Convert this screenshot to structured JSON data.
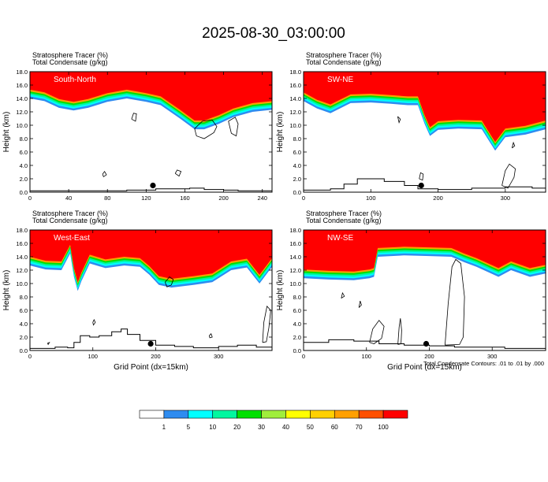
{
  "page": {
    "title": "2025-08-30_03:00:00",
    "footnote": "Total Condensate Contours: .01 to .01 by .000"
  },
  "colors": {
    "frame": "#000000",
    "contour": "#000000",
    "marker": "#000000"
  },
  "chart_data": {
    "type": "heatmap",
    "title": "2025-08-30_03:00:00",
    "variables": [
      "Stratosphere Tracer   (%)",
      "Total Condensate   (g/kg)"
    ],
    "xlabel": "Grid Point (dx=15km)",
    "ylabel": "Height (km)",
    "ylim": [
      0,
      18
    ],
    "yticks": [
      "0.0",
      "2.0",
      "4.0",
      "6.0",
      "8.0",
      "10.0",
      "12.0",
      "14.0",
      "16.0",
      "18.0"
    ],
    "colorbar": {
      "levels": [
        "1",
        "5",
        "10",
        "20",
        "30",
        "40",
        "50",
        "60",
        "70",
        "100"
      ],
      "colors": [
        "#ffffff",
        "#2e8cf0",
        "#00ffff",
        "#00f7a0",
        "#00e000",
        "#a0ee3c",
        "#ffff00",
        "#ffd000",
        "#ffa000",
        "#ff5000",
        "#ff0000"
      ]
    },
    "panels": [
      {
        "label": "South-North",
        "xlim": [
          0,
          250
        ],
        "xticks": [
          0,
          40,
          80,
          120,
          160,
          200,
          240
        ],
        "xlabels": [
          "0",
          "40",
          "80",
          "120",
          "160",
          "200",
          "240"
        ],
        "show_xlabel": false,
        "tracer_base_km": [
          [
            0,
            14.0
          ],
          [
            15,
            13.6
          ],
          [
            30,
            12.6
          ],
          [
            45,
            12.2
          ],
          [
            60,
            12.6
          ],
          [
            80,
            13.5
          ],
          [
            100,
            14.0
          ],
          [
            120,
            13.5
          ],
          [
            135,
            13.0
          ],
          [
            155,
            11.0
          ],
          [
            170,
            9.4
          ],
          [
            180,
            9.4
          ],
          [
            195,
            10.2
          ],
          [
            210,
            11.2
          ],
          [
            230,
            12.0
          ],
          [
            250,
            12.3
          ]
        ],
        "contours": [
          [
            [
              170,
              9.5
            ],
            [
              178,
              10.6
            ],
            [
              188,
              10.8
            ],
            [
              193,
              9.8
            ],
            [
              190,
              8.9
            ],
            [
              180,
              8.0
            ],
            [
              172,
              8.4
            ],
            [
              170,
              9.5
            ]
          ],
          [
            [
              105,
              10.9
            ],
            [
              107,
              11.8
            ],
            [
              110,
              11.7
            ],
            [
              109,
              10.6
            ],
            [
              105,
              10.9
            ]
          ],
          [
            [
              205,
              10.6
            ],
            [
              208,
              8.8
            ],
            [
              213,
              8.4
            ],
            [
              215,
              10.2
            ],
            [
              212,
              11.2
            ],
            [
              205,
              10.6
            ]
          ],
          [
            [
              150,
              2.8
            ],
            [
              152,
              3.3
            ],
            [
              156,
              3.1
            ],
            [
              154,
              2.4
            ],
            [
              150,
              2.8
            ]
          ],
          [
            [
              75,
              2.7
            ],
            [
              77,
              3.1
            ],
            [
              79,
              2.6
            ],
            [
              76,
              2.3
            ],
            [
              75,
              2.7
            ]
          ]
        ],
        "terrain": [
          [
            0,
            0.2
          ],
          [
            60,
            0.2
          ],
          [
            100,
            0.3
          ],
          [
            130,
            0.5
          ],
          [
            150,
            0.5
          ],
          [
            165,
            0.6
          ],
          [
            180,
            0.4
          ],
          [
            200,
            0.3
          ],
          [
            215,
            0.2
          ],
          [
            250,
            0.1
          ]
        ],
        "marker": [
          127,
          1.0
        ]
      },
      {
        "label": "SW-NE",
        "xlim": [
          0,
          360
        ],
        "xticks": [
          0,
          100,
          200,
          300
        ],
        "xlabels": [
          "0",
          "100",
          "200",
          "300"
        ],
        "show_xlabel": false,
        "tracer_base_km": [
          [
            0,
            13.6
          ],
          [
            20,
            12.5
          ],
          [
            40,
            11.8
          ],
          [
            70,
            13.3
          ],
          [
            100,
            13.4
          ],
          [
            130,
            13.2
          ],
          [
            155,
            13.0
          ],
          [
            170,
            13.0
          ],
          [
            180,
            10.2
          ],
          [
            188,
            8.4
          ],
          [
            200,
            9.3
          ],
          [
            230,
            9.5
          ],
          [
            265,
            9.4
          ],
          [
            275,
            7.8
          ],
          [
            285,
            6.2
          ],
          [
            300,
            8.2
          ],
          [
            330,
            8.6
          ],
          [
            360,
            9.4
          ]
        ],
        "contours": [
          [
            [
              295,
              1.0
            ],
            [
              300,
              3.2
            ],
            [
              306,
              4.2
            ],
            [
              315,
              3.5
            ],
            [
              313,
              2.2
            ],
            [
              304,
              0.6
            ],
            [
              295,
              1.0
            ]
          ],
          [
            [
              172,
              2.0
            ],
            [
              174,
              2.9
            ],
            [
              178,
              2.7
            ],
            [
              177,
              1.8
            ],
            [
              172,
              2.0
            ]
          ],
          [
            [
              140,
              11.3
            ],
            [
              142,
              10.4
            ],
            [
              144,
              10.9
            ],
            [
              140,
              11.3
            ]
          ],
          [
            [
              310,
              6.6
            ],
            [
              312,
              7.4
            ],
            [
              314,
              6.9
            ],
            [
              310,
              6.6
            ]
          ]
        ],
        "terrain": [
          [
            0,
            0.3
          ],
          [
            40,
            0.5
          ],
          [
            60,
            1.2
          ],
          [
            80,
            2.0
          ],
          [
            120,
            1.6
          ],
          [
            150,
            1.0
          ],
          [
            170,
            0.5
          ],
          [
            200,
            0.4
          ],
          [
            250,
            0.6
          ],
          [
            300,
            0.8
          ],
          [
            340,
            0.6
          ],
          [
            360,
            0.4
          ]
        ],
        "marker": [
          175,
          1.0
        ]
      },
      {
        "label": "West-East",
        "xlim": [
          0,
          385
        ],
        "xticks": [
          0,
          100,
          200,
          300
        ],
        "xlabels": [
          "0",
          "100",
          "200",
          "300"
        ],
        "show_xlabel": true,
        "tracer_base_km": [
          [
            0,
            12.7
          ],
          [
            25,
            12.1
          ],
          [
            50,
            12.0
          ],
          [
            64,
            14.5
          ],
          [
            70,
            11.0
          ],
          [
            76,
            8.9
          ],
          [
            82,
            10.4
          ],
          [
            95,
            13.0
          ],
          [
            120,
            12.3
          ],
          [
            150,
            12.7
          ],
          [
            175,
            12.5
          ],
          [
            190,
            11.3
          ],
          [
            205,
            9.8
          ],
          [
            225,
            9.4
          ],
          [
            260,
            9.8
          ],
          [
            290,
            10.2
          ],
          [
            320,
            12.0
          ],
          [
            345,
            12.4
          ],
          [
            365,
            10.0
          ],
          [
            385,
            12.5
          ]
        ],
        "contours": [
          [
            [
              215,
              10.2
            ],
            [
              222,
              11.0
            ],
            [
              228,
              10.6
            ],
            [
              225,
              9.8
            ],
            [
              218,
              9.5
            ],
            [
              215,
              10.2
            ]
          ],
          [
            [
              370,
              1.2
            ],
            [
              372,
              4.2
            ],
            [
              377,
              6.6
            ],
            [
              383,
              6.0
            ],
            [
              380,
              3.4
            ],
            [
              376,
              1.3
            ],
            [
              370,
              1.2
            ]
          ],
          [
            [
              28,
              1.1
            ],
            [
              31,
              1.2
            ],
            [
              29,
              0.9
            ],
            [
              28,
              1.1
            ]
          ],
          [
            [
              100,
              4.2
            ],
            [
              102,
              4.6
            ],
            [
              104,
              4.2
            ],
            [
              101,
              3.8
            ],
            [
              100,
              4.2
            ]
          ],
          [
            [
              285,
              2.2
            ],
            [
              288,
              2.5
            ],
            [
              290,
              2.0
            ],
            [
              286,
              1.9
            ],
            [
              285,
              2.2
            ]
          ]
        ],
        "terrain": [
          [
            0,
            0.3
          ],
          [
            40,
            0.5
          ],
          [
            60,
            0.4
          ],
          [
            70,
            1.2
          ],
          [
            80,
            2.2
          ],
          [
            95,
            2.0
          ],
          [
            110,
            2.2
          ],
          [
            130,
            2.8
          ],
          [
            145,
            3.2
          ],
          [
            155,
            2.4
          ],
          [
            175,
            1.5
          ],
          [
            200,
            0.8
          ],
          [
            230,
            0.6
          ],
          [
            260,
            0.4
          ],
          [
            300,
            0.6
          ],
          [
            330,
            0.8
          ],
          [
            360,
            0.5
          ],
          [
            385,
            0.3
          ]
        ],
        "marker": [
          192,
          1.0
        ]
      },
      {
        "label": "NW-SE",
        "xlim": [
          0,
          385
        ],
        "xticks": [
          0,
          100,
          200,
          300
        ],
        "xlabels": [
          "0",
          "100",
          "200",
          "300"
        ],
        "show_xlabel": true,
        "tracer_base_km": [
          [
            0,
            10.8
          ],
          [
            40,
            10.6
          ],
          [
            80,
            10.5
          ],
          [
            105,
            10.8
          ],
          [
            112,
            11.0
          ],
          [
            118,
            14.0
          ],
          [
            160,
            14.2
          ],
          [
            200,
            14.1
          ],
          [
            235,
            14.0
          ],
          [
            255,
            13.2
          ],
          [
            275,
            12.5
          ],
          [
            310,
            11.0
          ],
          [
            330,
            12.0
          ],
          [
            360,
            11.0
          ],
          [
            385,
            11.5
          ]
        ],
        "contours": [
          [
            [
              225,
              0.8
            ],
            [
              230,
              7.0
            ],
            [
              236,
              12.5
            ],
            [
              242,
              13.6
            ],
            [
              250,
              13.0
            ],
            [
              256,
              8.0
            ],
            [
              254,
              2.0
            ],
            [
              248,
              0.9
            ],
            [
              225,
              0.8
            ]
          ],
          [
            [
              150,
              0.9
            ],
            [
              152,
              3.5
            ],
            [
              154,
              4.8
            ],
            [
              156,
              3.0
            ],
            [
              155,
              1.0
            ],
            [
              150,
              0.9
            ]
          ],
          [
            [
              105,
              1.2
            ],
            [
              110,
              3.2
            ],
            [
              120,
              4.5
            ],
            [
              128,
              3.6
            ],
            [
              124,
              1.8
            ],
            [
              112,
              1.0
            ],
            [
              105,
              1.2
            ]
          ],
          [
            [
              88,
              6.4
            ],
            [
              90,
              7.4
            ],
            [
              92,
              6.8
            ],
            [
              88,
              6.4
            ]
          ],
          [
            [
              60,
              7.8
            ],
            [
              62,
              8.6
            ],
            [
              65,
              8.1
            ],
            [
              60,
              7.8
            ]
          ]
        ],
        "terrain": [
          [
            0,
            1.2
          ],
          [
            40,
            1.6
          ],
          [
            80,
            1.4
          ],
          [
            120,
            1.0
          ],
          [
            160,
            0.8
          ],
          [
            200,
            0.7
          ],
          [
            240,
            0.5
          ],
          [
            280,
            0.5
          ],
          [
            320,
            0.3
          ],
          [
            385,
            0.2
          ]
        ],
        "marker": [
          195,
          1.0
        ]
      }
    ]
  }
}
